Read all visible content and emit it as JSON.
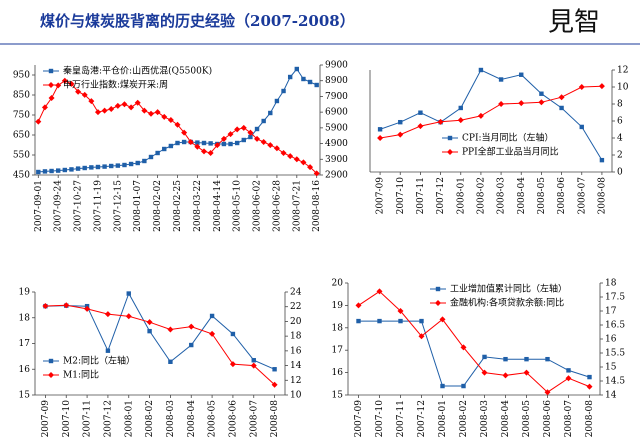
{
  "header": {
    "title": "煤价与煤炭股背离的历史经验（2007-2008）",
    "logo": "見智"
  },
  "chart_data": [
    {
      "type": "line",
      "categories": [
        "2007-09-01",
        null,
        null,
        "2007-09-24",
        null,
        null,
        "2007-10-27",
        null,
        null,
        "2007-11-19",
        null,
        null,
        "2007-12-15",
        null,
        null,
        "2008-01-07",
        null,
        null,
        "2008-02-02",
        null,
        null,
        "2008-02-25",
        null,
        null,
        "2008-03-22",
        null,
        null,
        "2008-04-14",
        null,
        null,
        "2008-05-10",
        null,
        null,
        "2008-06-02",
        null,
        null,
        "2008-06-28",
        null,
        null,
        "2008-07-21",
        null,
        null,
        "2008-08-16"
      ],
      "ylim": [
        450,
        1000
      ],
      "yticks": [
        450,
        550,
        650,
        750,
        850,
        950
      ],
      "y2lim": [
        2900,
        9900
      ],
      "y2ticks": [
        2900,
        3900,
        4900,
        5900,
        6900,
        7900,
        8900,
        9900
      ],
      "legend": "upper-left",
      "series": [
        {
          "name": "秦皇岛港:平仓价:山西优混(Q5500K)",
          "color": "#1f5fa8",
          "marker": "square",
          "axis": "y",
          "values": [
            465,
            468,
            470,
            472,
            475,
            478,
            482,
            485,
            488,
            490,
            492,
            495,
            497,
            500,
            505,
            510,
            520,
            540,
            560,
            580,
            595,
            610,
            615,
            615,
            612,
            610,
            608,
            605,
            605,
            605,
            610,
            625,
            640,
            680,
            720,
            760,
            820,
            870,
            940,
            980,
            930,
            915,
            900
          ]
        },
        {
          "name": "申万行业指数:煤炭开采:周",
          "color": "#ff0000",
          "marker": "diamond",
          "axis": "y2",
          "values": [
            6300,
            7200,
            7800,
            8600,
            8900,
            8700,
            8200,
            8000,
            7600,
            6900,
            7000,
            7100,
            7300,
            7400,
            7200,
            7500,
            7000,
            6800,
            6900,
            6600,
            6400,
            6100,
            5600,
            5000,
            4700,
            4400,
            4300,
            4800,
            5200,
            5500,
            5800,
            5900,
            5600,
            5200,
            5000,
            4800,
            4600,
            4300,
            4100,
            3900,
            3700,
            3400,
            3000
          ]
        }
      ]
    },
    {
      "type": "line",
      "categories": [
        "2007-09",
        "2007-10",
        "2007-11",
        "2007-12",
        "2008-01",
        "2008-02",
        "2008-03",
        "2008-04",
        "2008-05",
        "2008-06",
        "2008-07",
        "2008-08"
      ],
      "ylim": [
        4.4,
        8.7
      ],
      "y2lim": [
        0,
        12
      ],
      "y2ticks": [
        0,
        2,
        4,
        6,
        8,
        10,
        12
      ],
      "legend": "lower-right",
      "series": [
        {
          "name": "CPI:当月同比（左轴）",
          "color": "#1f5fa8",
          "marker": "square",
          "axis": "y",
          "values": [
            6.2,
            6.5,
            6.9,
            6.5,
            7.1,
            8.7,
            8.3,
            8.5,
            7.7,
            7.1,
            6.3,
            4.9
          ]
        },
        {
          "name": "PPI全部工业品当月同比",
          "color": "#ff0000",
          "marker": "diamond",
          "axis": "y2",
          "values": [
            4.0,
            4.4,
            5.4,
            5.9,
            6.1,
            6.6,
            8.0,
            8.1,
            8.2,
            8.8,
            10.0,
            10.1
          ]
        }
      ]
    },
    {
      "type": "line",
      "categories": [
        "2007-09",
        "2007-10",
        "2007-11",
        "2007-12",
        "2008-01",
        "2008-02",
        "2008-03",
        "2008-04",
        "2008-05",
        "2008-06",
        "2008-07",
        "2008-08"
      ],
      "ylim": [
        15,
        19
      ],
      "yticks": [
        15,
        16,
        17,
        18,
        19
      ],
      "y2lim": [
        10,
        24
      ],
      "y2ticks": [
        10,
        12,
        14,
        16,
        18,
        20,
        22,
        24
      ],
      "legend": "lower-left",
      "series": [
        {
          "name": "M2:同比（左轴）",
          "color": "#1f5fa8",
          "marker": "square",
          "axis": "y",
          "values": [
            18.45,
            18.47,
            18.45,
            16.72,
            18.94,
            17.48,
            16.29,
            16.94,
            18.07,
            17.37,
            16.35,
            16.0
          ]
        },
        {
          "name": "M1:同比",
          "color": "#ff0000",
          "marker": "diamond",
          "axis": "y2",
          "values": [
            22.1,
            22.2,
            21.7,
            21.0,
            20.7,
            19.9,
            18.9,
            19.3,
            18.3,
            14.2,
            14.0,
            11.4
          ]
        }
      ]
    },
    {
      "type": "line",
      "categories": [
        "2007-09",
        "2007-10",
        "2007-11",
        "2007-12",
        "2008-01",
        "2008-02",
        "2008-03",
        "2008-04",
        "2008-05",
        "2008-06",
        "2008-07",
        "2008-08"
      ],
      "ylim": [
        15,
        20
      ],
      "yticks": [
        15,
        16,
        17,
        18,
        19,
        20
      ],
      "y2lim": [
        14,
        18
      ],
      "y2ticks": [
        14,
        14.5,
        15,
        15.5,
        16,
        16.5,
        17,
        17.5,
        18
      ],
      "legend": "upper-right",
      "series": [
        {
          "name": "工业增加值累计同比（左轴）",
          "color": "#1f5fa8",
          "marker": "square",
          "axis": "y",
          "values": [
            18.3,
            18.3,
            18.3,
            18.3,
            15.4,
            15.4,
            16.7,
            16.6,
            16.6,
            16.6,
            16.1,
            15.8
          ]
        },
        {
          "name": "金融机构:各项贷款余额:同比",
          "color": "#ff0000",
          "marker": "diamond",
          "axis": "y2",
          "values": [
            17.2,
            17.7,
            17.0,
            16.1,
            16.7,
            15.7,
            14.8,
            14.7,
            14.8,
            14.1,
            14.6,
            14.3
          ]
        }
      ]
    }
  ]
}
